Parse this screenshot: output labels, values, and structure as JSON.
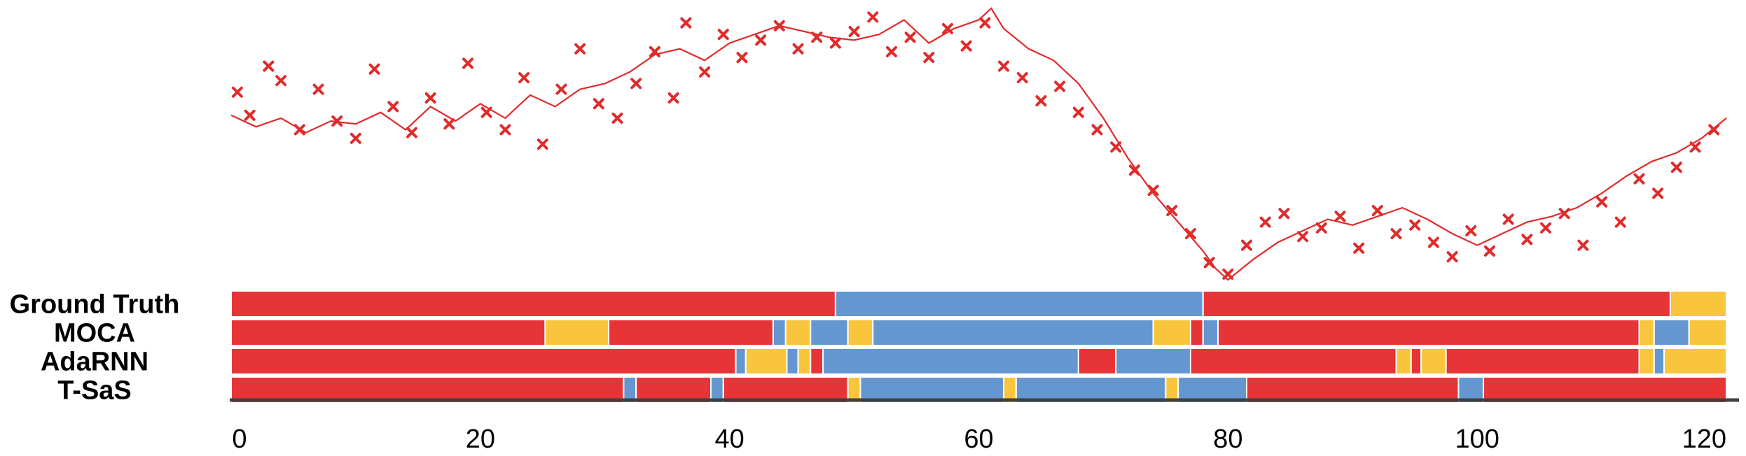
{
  "chart_data": {
    "type": "line",
    "title": "",
    "xlabel": "",
    "ylabel": "",
    "xlim": [
      0,
      120
    ],
    "x_ticks": [
      "0",
      "20",
      "40",
      "60",
      "80",
      "100",
      "120"
    ],
    "series_color": "#e02b2b",
    "line": {
      "x": [
        0,
        2,
        4,
        6,
        8,
        10,
        12,
        14,
        16,
        18,
        20,
        22,
        24,
        26,
        28,
        30,
        32,
        34,
        36,
        38,
        40,
        42,
        44,
        46,
        48,
        50,
        52,
        54,
        56,
        58,
        60,
        61,
        62,
        64,
        66,
        68,
        70,
        72,
        74,
        76,
        78,
        79,
        80,
        82,
        84,
        86,
        88,
        90,
        92,
        94,
        96,
        98,
        100,
        102,
        104,
        106,
        108,
        110,
        112,
        114,
        116,
        118,
        120
      ],
      "y": [
        0.63,
        0.59,
        0.62,
        0.57,
        0.61,
        0.6,
        0.64,
        0.58,
        0.66,
        0.61,
        0.67,
        0.62,
        0.7,
        0.66,
        0.72,
        0.74,
        0.78,
        0.84,
        0.86,
        0.82,
        0.88,
        0.91,
        0.94,
        0.92,
        0.9,
        0.89,
        0.91,
        0.96,
        0.88,
        0.93,
        0.96,
        1.0,
        0.93,
        0.86,
        0.82,
        0.74,
        0.62,
        0.48,
        0.36,
        0.26,
        0.16,
        0.1,
        0.06,
        0.13,
        0.19,
        0.23,
        0.27,
        0.25,
        0.28,
        0.31,
        0.27,
        0.22,
        0.18,
        0.22,
        0.26,
        0.28,
        0.31,
        0.36,
        0.42,
        0.47,
        0.5,
        0.55,
        0.62
      ]
    },
    "scatter": {
      "x": [
        0.5,
        1.5,
        3,
        4,
        5.5,
        7,
        8.5,
        10,
        11.5,
        13,
        14.5,
        16,
        17.5,
        19,
        20.5,
        22,
        23.5,
        25,
        26.5,
        28,
        29.5,
        31,
        32.5,
        34,
        35.5,
        36.5,
        38,
        39.5,
        41,
        42.5,
        44,
        45.5,
        47,
        48.5,
        50,
        51.5,
        53,
        54.5,
        56,
        57.5,
        59,
        60.5,
        62,
        63.5,
        65,
        66.5,
        68,
        69.5,
        71,
        72.5,
        74,
        75.5,
        77,
        78.5,
        80,
        81.5,
        83,
        84.5,
        86,
        87.5,
        89,
        90.5,
        92,
        93.5,
        95,
        96.5,
        98,
        99.5,
        101,
        102.5,
        104,
        105.5,
        107,
        108.5,
        110,
        111.5,
        113,
        114.5,
        116,
        117.5,
        119
      ],
      "y": [
        0.71,
        0.63,
        0.8,
        0.75,
        0.58,
        0.72,
        0.61,
        0.55,
        0.79,
        0.66,
        0.57,
        0.69,
        0.6,
        0.81,
        0.64,
        0.58,
        0.76,
        0.53,
        0.72,
        0.86,
        0.67,
        0.62,
        0.74,
        0.85,
        0.69,
        0.95,
        0.78,
        0.91,
        0.83,
        0.89,
        0.94,
        0.86,
        0.9,
        0.88,
        0.92,
        0.97,
        0.85,
        0.9,
        0.83,
        0.93,
        0.87,
        0.95,
        0.8,
        0.76,
        0.68,
        0.73,
        0.64,
        0.58,
        0.52,
        0.44,
        0.37,
        0.3,
        0.22,
        0.12,
        0.08,
        0.18,
        0.26,
        0.29,
        0.21,
        0.24,
        0.28,
        0.17,
        0.3,
        0.22,
        0.25,
        0.19,
        0.14,
        0.23,
        0.16,
        0.27,
        0.2,
        0.24,
        0.29,
        0.18,
        0.33,
        0.26,
        0.41,
        0.36,
        0.45,
        0.52,
        0.58
      ]
    },
    "segment_rows": [
      {
        "name": "Ground Truth",
        "segments": [
          {
            "start": 0,
            "end": 48.5,
            "state": "red"
          },
          {
            "start": 48.5,
            "end": 78,
            "state": "blue"
          },
          {
            "start": 78,
            "end": 115.5,
            "state": "red"
          },
          {
            "start": 115.5,
            "end": 120,
            "state": "yellow"
          }
        ]
      },
      {
        "name": "MOCA",
        "segments": [
          {
            "start": 0,
            "end": 25.2,
            "state": "red"
          },
          {
            "start": 25.2,
            "end": 30.3,
            "state": "yellow"
          },
          {
            "start": 30.3,
            "end": 43.5,
            "state": "red"
          },
          {
            "start": 43.5,
            "end": 44.5,
            "state": "blue"
          },
          {
            "start": 44.5,
            "end": 46.5,
            "state": "yellow"
          },
          {
            "start": 46.5,
            "end": 49.5,
            "state": "blue"
          },
          {
            "start": 49.5,
            "end": 51.5,
            "state": "yellow"
          },
          {
            "start": 51.5,
            "end": 74,
            "state": "blue"
          },
          {
            "start": 74,
            "end": 77,
            "state": "yellow"
          },
          {
            "start": 77,
            "end": 78,
            "state": "red"
          },
          {
            "start": 78,
            "end": 79.2,
            "state": "blue"
          },
          {
            "start": 79.2,
            "end": 113,
            "state": "red"
          },
          {
            "start": 113,
            "end": 114.2,
            "state": "yellow"
          },
          {
            "start": 114.2,
            "end": 117,
            "state": "blue"
          },
          {
            "start": 117,
            "end": 120,
            "state": "yellow"
          }
        ]
      },
      {
        "name": "AdaRNN",
        "segments": [
          {
            "start": 0,
            "end": 40.5,
            "state": "red"
          },
          {
            "start": 40.5,
            "end": 41.3,
            "state": "blue"
          },
          {
            "start": 41.3,
            "end": 44.6,
            "state": "yellow"
          },
          {
            "start": 44.6,
            "end": 45.5,
            "state": "blue"
          },
          {
            "start": 45.5,
            "end": 46.5,
            "state": "yellow"
          },
          {
            "start": 46.5,
            "end": 47.5,
            "state": "red"
          },
          {
            "start": 47.5,
            "end": 68,
            "state": "blue"
          },
          {
            "start": 68,
            "end": 71,
            "state": "red"
          },
          {
            "start": 71,
            "end": 77,
            "state": "blue"
          },
          {
            "start": 77,
            "end": 93.5,
            "state": "red"
          },
          {
            "start": 93.5,
            "end": 94.7,
            "state": "yellow"
          },
          {
            "start": 94.7,
            "end": 95.5,
            "state": "red"
          },
          {
            "start": 95.5,
            "end": 97.5,
            "state": "yellow"
          },
          {
            "start": 97.5,
            "end": 113,
            "state": "red"
          },
          {
            "start": 113,
            "end": 114.2,
            "state": "yellow"
          },
          {
            "start": 114.2,
            "end": 115,
            "state": "blue"
          },
          {
            "start": 115,
            "end": 120,
            "state": "yellow"
          }
        ]
      },
      {
        "name": "T-SaS",
        "segments": [
          {
            "start": 0,
            "end": 31.5,
            "state": "red"
          },
          {
            "start": 31.5,
            "end": 32.5,
            "state": "blue"
          },
          {
            "start": 32.5,
            "end": 38.5,
            "state": "red"
          },
          {
            "start": 38.5,
            "end": 39.5,
            "state": "blue"
          },
          {
            "start": 39.5,
            "end": 49.5,
            "state": "red"
          },
          {
            "start": 49.5,
            "end": 50.5,
            "state": "yellow"
          },
          {
            "start": 50.5,
            "end": 62,
            "state": "blue"
          },
          {
            "start": 62,
            "end": 63,
            "state": "yellow"
          },
          {
            "start": 63,
            "end": 75,
            "state": "blue"
          },
          {
            "start": 75,
            "end": 76,
            "state": "yellow"
          },
          {
            "start": 76,
            "end": 81.5,
            "state": "blue"
          },
          {
            "start": 81.5,
            "end": 98.5,
            "state": "red"
          },
          {
            "start": 98.5,
            "end": 100.5,
            "state": "blue"
          },
          {
            "start": 100.5,
            "end": 120,
            "state": "red"
          }
        ]
      }
    ],
    "state_colors": {
      "red": "#e63437",
      "blue": "#6497d0",
      "yellow": "#f8c53d"
    }
  }
}
